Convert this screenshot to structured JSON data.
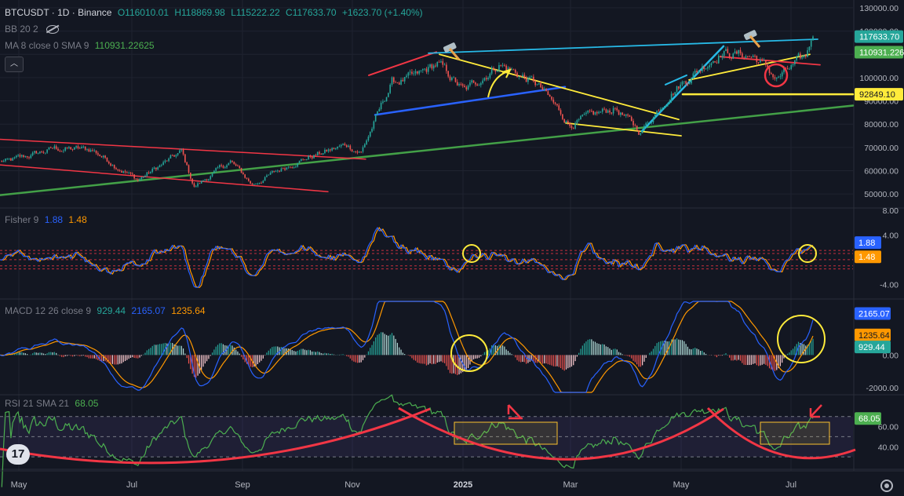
{
  "header": {
    "symbol": "BTCUSDT · 1D · Binance",
    "open": "O116010.01",
    "high": "H118869.98",
    "low": "L115222.22",
    "close": "C117633.70",
    "change": "+1623.70 (+1.40%)",
    "bb": "BB 20 2",
    "ma_label": "MA 8 close 0 SMA 9",
    "ma_value": "110931.22625"
  },
  "fisher_legend": {
    "label": "Fisher 9",
    "v1": "1.88",
    "v2": "1.48"
  },
  "macd_legend": {
    "label": "MACD 12 26 close 9",
    "v1": "929.44",
    "v2": "2165.07",
    "v3": "1235.64"
  },
  "rsi_legend": {
    "label": "RSI 21 SMA 21",
    "v1": "68.05"
  },
  "colors": {
    "bg": "#131722",
    "grid": "#1f2330",
    "up": "#26a69a",
    "down": "#ef5350",
    "red_line": "#f23645",
    "cyan": "#27b9e6",
    "yellow": "#ffeb3b",
    "green_line": "#43a047",
    "blue_line": "#2962ff",
    "orange": "#ff9800",
    "rsi": "#4caf50"
  },
  "chart_data": [
    {
      "type": "candlestick",
      "title": "BTCUSDT · 1D · Binance",
      "x_ticks": [
        "May",
        "Jul",
        "Sep",
        "Nov",
        "2025",
        "Mar",
        "May",
        "Jul"
      ],
      "y_ticks": [
        "130000.00",
        "120000.00",
        "110000.00",
        "100000.00",
        "90000.00",
        "80000.00",
        "70000.00",
        "60000.00",
        "50000.00"
      ],
      "ylim": [
        45000,
        132000
      ],
      "approx_close_path": [
        {
          "x": "2024-04-25",
          "y": 64000
        },
        {
          "x": "2024-05-20",
          "y": 69500
        },
        {
          "x": "2024-06-10",
          "y": 69000
        },
        {
          "x": "2024-07-05",
          "y": 56000
        },
        {
          "x": "2024-07-29",
          "y": 68000
        },
        {
          "x": "2024-08-05",
          "y": 53000
        },
        {
          "x": "2024-08-25",
          "y": 64000
        },
        {
          "x": "2024-09-06",
          "y": 54000
        },
        {
          "x": "2024-09-30",
          "y": 64000
        },
        {
          "x": "2024-10-28",
          "y": 71000
        },
        {
          "x": "2024-11-05",
          "y": 68000
        },
        {
          "x": "2024-11-22",
          "y": 98000
        },
        {
          "x": "2024-12-05",
          "y": 100000
        },
        {
          "x": "2024-12-17",
          "y": 106000
        },
        {
          "x": "2025-01-01",
          "y": 94000
        },
        {
          "x": "2025-01-20",
          "y": 106000
        },
        {
          "x": "2025-02-10",
          "y": 97000
        },
        {
          "x": "2025-02-28",
          "y": 80000
        },
        {
          "x": "2025-03-25",
          "y": 87000
        },
        {
          "x": "2025-04-08",
          "y": 76500
        },
        {
          "x": "2025-04-25",
          "y": 94000
        },
        {
          "x": "2025-05-22",
          "y": 111000
        },
        {
          "x": "2025-06-10",
          "y": 109000
        },
        {
          "x": "2025-06-22",
          "y": 99500
        },
        {
          "x": "2025-07-08",
          "y": 108500
        },
        {
          "x": "2025-07-11",
          "y": 117633.7
        }
      ],
      "price_labels": [
        {
          "value": 117633.7,
          "label": "117633.70",
          "color": "#26a69a"
        },
        {
          "value": 110931.22625,
          "label": "110931.22625",
          "color": "#4caf50"
        },
        {
          "value": 92849.1,
          "label": "92849.10",
          "color": "#ffeb3b"
        }
      ],
      "annotations": [
        "rising channel",
        "rising wedge",
        "falling wedge",
        "support 92849.10",
        "long-term uptrend line"
      ]
    },
    {
      "type": "line",
      "title": "Fisher 9",
      "y_ticks": [
        "8.00",
        "4.00",
        "-4.00"
      ],
      "ylim": [
        -6,
        8
      ],
      "series": [
        {
          "name": "1.88",
          "last": 1.88,
          "color": "#2962ff"
        },
        {
          "name": "1.48",
          "last": 1.48,
          "color": "#ff9800"
        }
      ]
    },
    {
      "type": "line",
      "title": "MACD 12 26 close 9",
      "y_ticks": [
        "0.00",
        "-2000.00"
      ],
      "ylim": [
        -2300,
        3300
      ],
      "series": [
        {
          "name": "929.44",
          "last": 929.44,
          "color": "#26a69a"
        },
        {
          "name": "2165.07",
          "last": 2165.07,
          "color": "#2962ff"
        },
        {
          "name": "1235.64",
          "last": 1235.64,
          "color": "#ff9800"
        }
      ]
    },
    {
      "type": "line",
      "title": "RSI 21 SMA 21",
      "y_ticks": [
        "60.00",
        "40.00"
      ],
      "ylim": [
        20,
        90
      ],
      "series": [
        {
          "name": "68.05",
          "last": 68.05,
          "color": "#4caf50"
        }
      ]
    }
  ]
}
